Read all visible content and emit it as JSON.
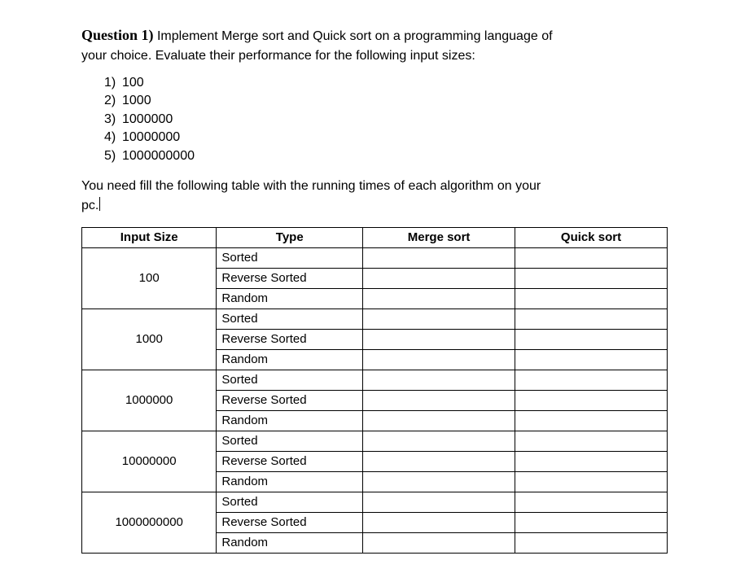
{
  "question": {
    "label": "Question 1)",
    "text_line1": " Implement Merge sort and Quick sort on a programming language of",
    "text_line2": "your choice. Evaluate their performance for the following input sizes:"
  },
  "sizes": [
    {
      "n": "1)",
      "v": "100"
    },
    {
      "n": "2)",
      "v": "1000"
    },
    {
      "n": "3)",
      "v": "1000000"
    },
    {
      "n": "4)",
      "v": "10000000"
    },
    {
      "n": "5)",
      "v": "1000000000"
    }
  ],
  "instruction_line1": "You need fill the following table with the running times of each algorithm on your",
  "instruction_line2": "pc.",
  "table": {
    "headers": [
      "Input Size",
      "Type",
      "Merge sort",
      "Quick sort"
    ],
    "groups": [
      {
        "size": "100",
        "types": [
          "Sorted",
          "Reverse Sorted",
          "Random"
        ]
      },
      {
        "size": "1000",
        "types": [
          "Sorted",
          "Reverse Sorted",
          "Random"
        ]
      },
      {
        "size": "1000000",
        "types": [
          "Sorted",
          "Reverse Sorted",
          "Random"
        ]
      },
      {
        "size": "10000000",
        "types": [
          "Sorted",
          "Reverse Sorted",
          "Random"
        ]
      },
      {
        "size": "1000000000",
        "types": [
          "Sorted",
          "Reverse Sorted",
          "Random"
        ]
      }
    ]
  }
}
